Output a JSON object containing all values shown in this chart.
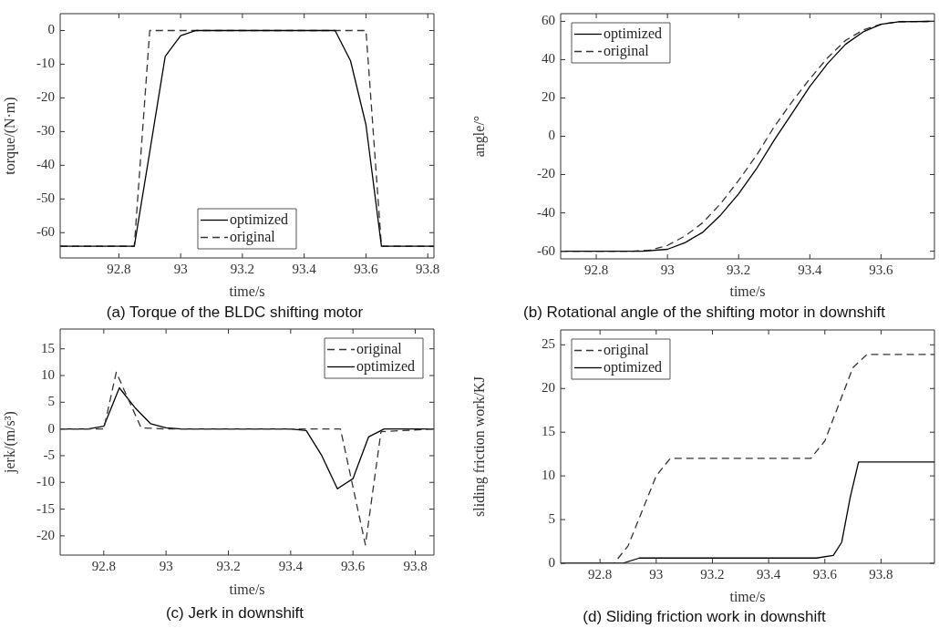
{
  "chart_data": [
    {
      "type": "line",
      "title": "(a) Torque of the BLDC shifting motor",
      "xlabel": "time/s",
      "ylabel": "torque/(N·m)",
      "xlim": [
        92.61,
        93.82
      ],
      "ylim": [
        -67.5,
        5
      ],
      "xticks": [
        92.8,
        93,
        93.2,
        93.4,
        93.6,
        93.8
      ],
      "yticks": [
        -60,
        -50,
        -40,
        -30,
        -20,
        -10,
        0
      ],
      "legend": "bottom",
      "series": [
        {
          "name": "optimized",
          "color": "#000000",
          "line_style": "solid",
          "x": [
            92.61,
            92.85,
            92.9,
            92.95,
            93.0,
            93.05,
            93.5,
            93.55,
            93.6,
            93.65,
            93.82
          ],
          "values": [
            -64,
            -64,
            -36,
            -7.7,
            -1.5,
            0,
            0,
            -9,
            -28,
            -64,
            -64
          ]
        },
        {
          "name": "original",
          "color": "#333333",
          "line_style": "dashed",
          "x": [
            92.61,
            92.85,
            92.9,
            93.6,
            93.65,
            93.82
          ],
          "values": [
            -64,
            -64,
            0,
            0,
            -64,
            -64
          ]
        }
      ]
    },
    {
      "type": "line",
      "title": "(b) Rotational angle of the shifting motor in downshift",
      "xlabel": "time/s",
      "ylabel": "angle/°",
      "xlim": [
        92.7,
        93.75
      ],
      "ylim": [
        -64,
        64
      ],
      "xticks": [
        92.8,
        93,
        93.2,
        93.4,
        93.6
      ],
      "yticks": [
        -60,
        -40,
        -20,
        0,
        20,
        40,
        60
      ],
      "legend": "top left",
      "series": [
        {
          "name": "optimized",
          "color": "#000000",
          "line_style": "solid",
          "x": [
            92.7,
            92.93,
            93.0,
            93.05,
            93.1,
            93.15,
            93.2,
            93.25,
            93.3,
            93.35,
            93.4,
            93.45,
            93.5,
            93.55,
            93.6,
            93.65,
            93.75
          ],
          "values": [
            -60,
            -60,
            -59,
            -55.5,
            -50,
            -41,
            -30,
            -17,
            -2,
            12,
            26,
            38,
            48,
            54.5,
            58.5,
            59.8,
            60
          ]
        },
        {
          "name": "original",
          "color": "#333333",
          "line_style": "dashed",
          "x": [
            92.7,
            92.9,
            92.95,
            93.0,
            93.05,
            93.1,
            93.15,
            93.2,
            93.25,
            93.3,
            93.35,
            93.4,
            93.45,
            93.5,
            93.55,
            93.6,
            93.65,
            93.75
          ],
          "values": [
            -60,
            -60,
            -59.5,
            -57,
            -52,
            -45,
            -35,
            -23,
            -10,
            5,
            18,
            30,
            41,
            50,
            55.5,
            58.5,
            59.8,
            60
          ]
        }
      ]
    },
    {
      "type": "line",
      "title": "(c) Jerk in downshift",
      "xlabel": "time/s",
      "ylabel": "jerk/(m/s³)",
      "xlim": [
        92.66,
        93.86
      ],
      "ylim": [
        -23.6,
        18.7
      ],
      "xticks": [
        92.8,
        93,
        93.2,
        93.4,
        93.6,
        93.8
      ],
      "yticks": [
        -20,
        -15,
        -10,
        -5,
        0,
        5,
        10,
        15
      ],
      "legend": "top right",
      "series": [
        {
          "name": "original",
          "color": "#333333",
          "line_style": "dashed",
          "x": [
            92.66,
            92.8,
            92.84,
            92.92,
            93.0,
            93.56,
            93.64,
            93.69,
            93.86
          ],
          "values": [
            0,
            0,
            10.6,
            0.2,
            0,
            0,
            -21.7,
            -0.5,
            0
          ]
        },
        {
          "name": "optimized",
          "color": "#000000",
          "line_style": "solid",
          "x": [
            92.66,
            92.75,
            92.8,
            92.85,
            92.9,
            92.95,
            93.0,
            93.05,
            93.4,
            93.45,
            93.5,
            93.55,
            93.6,
            93.65,
            93.7,
            93.86
          ],
          "values": [
            0,
            0,
            0.5,
            7.7,
            4,
            1,
            0.2,
            0,
            0,
            -0.3,
            -5,
            -11.2,
            -9.3,
            -1.5,
            0,
            0
          ]
        }
      ]
    },
    {
      "type": "line",
      "title": "(d) Sliding friction work in downshift",
      "xlabel": "time/s",
      "ylabel": "sliding friction work/KJ",
      "xlim": [
        92.66,
        93.99
      ],
      "ylim": [
        0,
        26.7
      ],
      "xticks": [
        92.8,
        93,
        93.2,
        93.4,
        93.6,
        93.8
      ],
      "yticks": [
        0,
        5,
        10,
        15,
        20,
        25
      ],
      "legend": "top left",
      "series": [
        {
          "name": "original",
          "color": "#333333",
          "line_style": "dashed",
          "x": [
            92.66,
            92.85,
            92.9,
            93.0,
            93.05,
            93.55,
            93.6,
            93.7,
            93.75,
            93.99
          ],
          "values": [
            0,
            0,
            2,
            10,
            12,
            12,
            14,
            22.4,
            23.9,
            23.9
          ]
        },
        {
          "name": "optimized",
          "color": "#000000",
          "line_style": "solid",
          "x": [
            92.66,
            92.88,
            92.94,
            93.57,
            93.63,
            93.66,
            93.69,
            93.72,
            93.99
          ],
          "values": [
            0,
            0,
            0.6,
            0.6,
            0.9,
            2.4,
            7.5,
            11.6,
            11.6
          ]
        }
      ]
    }
  ]
}
